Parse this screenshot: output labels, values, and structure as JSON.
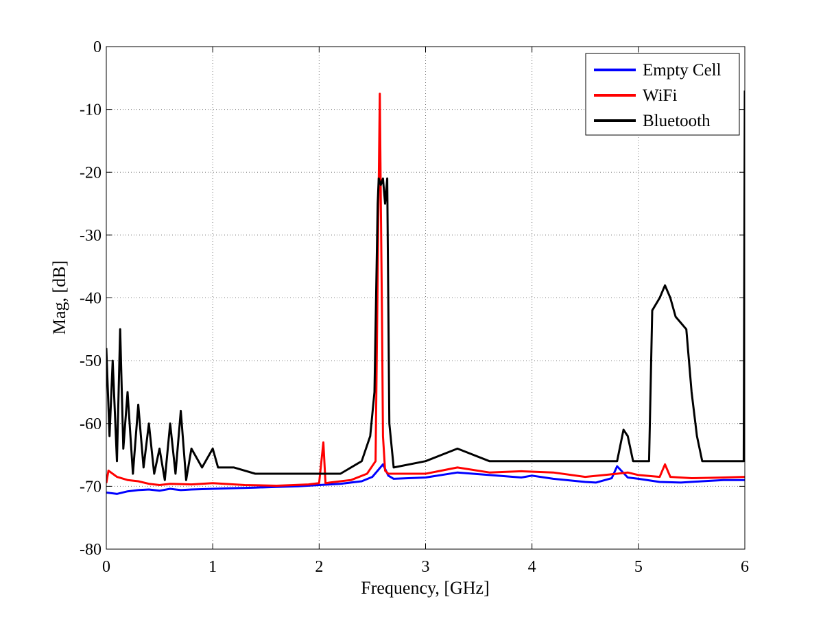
{
  "chart_data": {
    "type": "line",
    "title": "",
    "xlabel": "Frequency, [GHz]",
    "ylabel": "Mag, [dB]",
    "xlim": [
      0,
      6
    ],
    "ylim": [
      -80,
      0
    ],
    "xticks": [
      0,
      1,
      2,
      3,
      4,
      5,
      6
    ],
    "yticks": [
      0,
      -10,
      -20,
      -30,
      -40,
      -50,
      -60,
      -70,
      -80
    ],
    "grid": true,
    "legend_position": "top-right",
    "series": [
      {
        "name": "Empty Cell",
        "color": "#0000ff",
        "x": [
          0,
          0.1,
          0.2,
          0.3,
          0.4,
          0.5,
          0.6,
          0.7,
          0.8,
          1.0,
          1.2,
          1.4,
          1.6,
          1.8,
          2.0,
          2.2,
          2.4,
          2.5,
          2.55,
          2.6,
          2.65,
          2.7,
          3.0,
          3.3,
          3.6,
          3.9,
          4.0,
          4.2,
          4.5,
          4.6,
          4.75,
          4.8,
          4.9,
          5.0,
          5.2,
          5.4,
          5.6,
          5.8,
          6.0
        ],
        "y": [
          -71,
          -71.2,
          -70.8,
          -70.6,
          -70.5,
          -70.7,
          -70.4,
          -70.6,
          -70.5,
          -70.4,
          -70.3,
          -70.2,
          -70.1,
          -70.0,
          -69.8,
          -69.6,
          -69.2,
          -68.5,
          -67.5,
          -66.5,
          -68.3,
          -68.8,
          -68.6,
          -67.8,
          -68.2,
          -68.6,
          -68.3,
          -68.8,
          -69.3,
          -69.4,
          -68.7,
          -66.8,
          -68.6,
          -68.8,
          -69.3,
          -69.4,
          -69.2,
          -69.0,
          -69.0
        ]
      },
      {
        "name": "WiFi",
        "color": "#ff0000",
        "x": [
          0,
          0.02,
          0.1,
          0.2,
          0.3,
          0.4,
          0.5,
          0.6,
          0.8,
          1.0,
          1.3,
          1.6,
          1.9,
          2.0,
          2.04,
          2.06,
          2.1,
          2.3,
          2.45,
          2.53,
          2.56,
          2.57,
          2.58,
          2.59,
          2.6,
          2.62,
          2.65,
          2.8,
          3.0,
          3.3,
          3.6,
          3.9,
          4.2,
          4.5,
          4.8,
          4.9,
          5.0,
          5.2,
          5.25,
          5.3,
          5.5,
          5.8,
          6.0
        ],
        "y": [
          -69.5,
          -67.5,
          -68.5,
          -69.0,
          -69.2,
          -69.6,
          -69.8,
          -69.6,
          -69.7,
          -69.5,
          -69.8,
          -69.9,
          -69.7,
          -69.5,
          -63.0,
          -69.5,
          -69.4,
          -69.0,
          -68.0,
          -66.0,
          -22.0,
          -7.5,
          -25.0,
          -42.0,
          -62.0,
          -67.5,
          -68.0,
          -68.0,
          -68.0,
          -67.0,
          -67.8,
          -67.6,
          -67.8,
          -68.5,
          -68.0,
          -67.8,
          -68.2,
          -68.5,
          -66.5,
          -68.5,
          -68.7,
          -68.6,
          -68.5
        ]
      },
      {
        "name": "Bluetooth",
        "color": "#000000",
        "x": [
          0,
          0.03,
          0.06,
          0.1,
          0.13,
          0.16,
          0.2,
          0.25,
          0.3,
          0.35,
          0.4,
          0.45,
          0.5,
          0.55,
          0.6,
          0.65,
          0.7,
          0.75,
          0.8,
          0.9,
          1.0,
          1.05,
          1.2,
          1.4,
          1.6,
          1.8,
          2.0,
          2.2,
          2.4,
          2.48,
          2.52,
          2.55,
          2.56,
          2.58,
          2.6,
          2.62,
          2.64,
          2.66,
          2.7,
          3.0,
          3.3,
          3.6,
          3.9,
          4.2,
          4.5,
          4.8,
          4.86,
          4.9,
          4.95,
          5.0,
          5.1,
          5.13,
          5.2,
          5.25,
          5.3,
          5.35,
          5.4,
          5.45,
          5.5,
          5.55,
          5.6,
          5.8,
          5.95,
          5.99,
          6.0
        ],
        "y": [
          -48,
          -62,
          -50,
          -66,
          -45,
          -64,
          -55,
          -68,
          -57,
          -67,
          -60,
          -68,
          -64,
          -69,
          -60,
          -68,
          -58,
          -69,
          -64,
          -67,
          -64,
          -67,
          -67,
          -68,
          -68,
          -68,
          -68,
          -68,
          -66,
          -62,
          -55,
          -25,
          -21,
          -22,
          -21,
          -25,
          -21,
          -60,
          -67,
          -66,
          -64,
          -66,
          -66,
          -66,
          -66,
          -66,
          -61,
          -62,
          -66,
          -66,
          -66,
          -42,
          -40,
          -38,
          -40,
          -43,
          -44,
          -45,
          -55,
          -62,
          -66,
          -66,
          -66,
          -66,
          -7
        ]
      }
    ]
  }
}
